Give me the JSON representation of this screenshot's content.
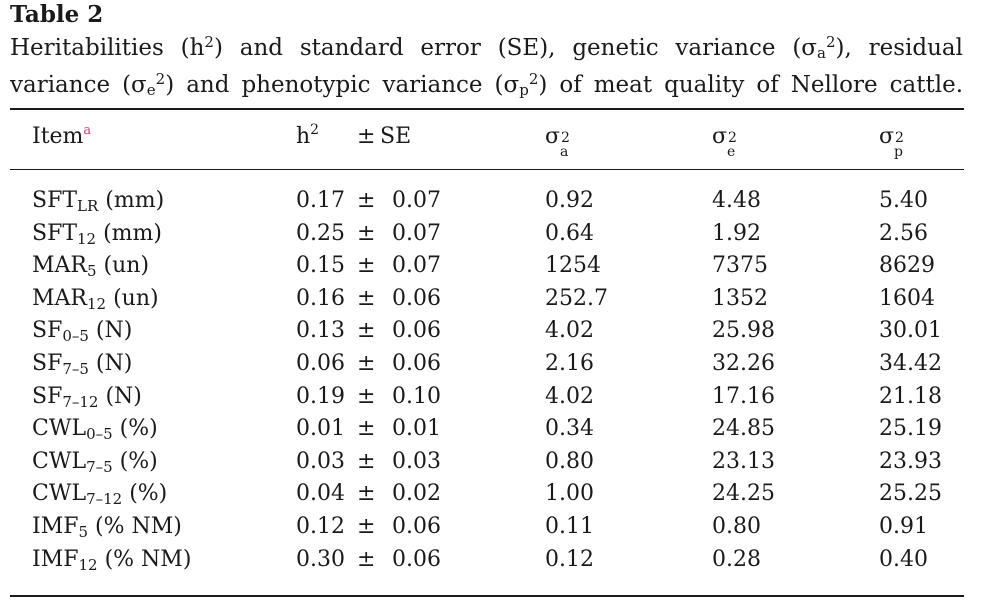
{
  "table": {
    "label": "Table 2",
    "caption_line1": {
      "p1": "Heritabilities (h",
      "sup1": "2",
      "p2": ") and standard error (SE), genetic variance (σ",
      "sub_a": "a",
      "sup_a": "2",
      "p3": "), residual"
    },
    "caption_line2": {
      "p1": "variance (σ",
      "sub_e": "e",
      "sup_e": "2",
      "p2": ") and phenotypic variance (σ",
      "sub_p": "p",
      "sup_p": "2",
      "p3": ") of meat quality of Nellore cattle."
    },
    "headers": {
      "item": "Item",
      "item_footnote": "a",
      "h2": "h",
      "h2_sup": "2",
      "pm": "±",
      "se": "SE",
      "sigma": "σ",
      "sub_a": "a",
      "sub_e": "e",
      "sub_p": "p",
      "sq": "2"
    },
    "rows": [
      {
        "item": "SFT",
        "sub": "LR",
        "unit": " (mm)",
        "h2": "0.17",
        "pm": "±",
        "se": "0.07",
        "sa2": "0.92",
        "se2": "4.48",
        "sp2": "5.40"
      },
      {
        "item": "SFT",
        "sub": "12",
        "unit": " (mm)",
        "h2": "0.25",
        "pm": "±",
        "se": "0.07",
        "sa2": "0.64",
        "se2": "1.92",
        "sp2": "2.56"
      },
      {
        "item": "MAR",
        "sub": "5",
        "unit": " (un)",
        "h2": "0.15",
        "pm": "±",
        "se": "0.07",
        "sa2": "1254",
        "se2": "7375",
        "sp2": "8629"
      },
      {
        "item": "MAR",
        "sub": "12",
        "unit": " (un)",
        "h2": "0.16",
        "pm": "±",
        "se": "0.06",
        "sa2": "252.7",
        "se2": "1352",
        "sp2": "1604"
      },
      {
        "item": "SF",
        "sub": "0–5",
        "unit": " (N)",
        "h2": "0.13",
        "pm": "±",
        "se": "0.06",
        "sa2": "4.02",
        "se2": "25.98",
        "sp2": "30.01"
      },
      {
        "item": "SF",
        "sub": "7–5",
        "unit": " (N)",
        "h2": "0.06",
        "pm": "±",
        "se": "0.06",
        "sa2": "2.16",
        "se2": "32.26",
        "sp2": "34.42"
      },
      {
        "item": "SF",
        "sub": "7–12",
        "unit": " (N)",
        "h2": "0.19",
        "pm": "±",
        "se": "0.10",
        "sa2": "4.02",
        "se2": "17.16",
        "sp2": "21.18"
      },
      {
        "item": "CWL",
        "sub": "0–5",
        "unit": " (%)",
        "h2": "0.01",
        "pm": "±",
        "se": "0.01",
        "sa2": "0.34",
        "se2": "24.85",
        "sp2": "25.19"
      },
      {
        "item": "CWL",
        "sub": "7–5",
        "unit": " (%)",
        "h2": "0.03",
        "pm": "±",
        "se": "0.03",
        "sa2": "0.80",
        "se2": "23.13",
        "sp2": "23.93"
      },
      {
        "item": "CWL",
        "sub": "7–12",
        "unit": " (%)",
        "h2": "0.04",
        "pm": "±",
        "se": "0.02",
        "sa2": "1.00",
        "se2": "24.25",
        "sp2": "25.25"
      },
      {
        "item": "IMF",
        "sub": "5",
        "unit": " (% NM)",
        "h2": "0.12",
        "pm": "±",
        "se": "0.06",
        "sa2": "0.11",
        "se2": "0.80",
        "sp2": "0.91"
      },
      {
        "item": "IMF",
        "sub": "12",
        "unit": " (% NM)",
        "h2": "0.30",
        "pm": "±",
        "se": "0.06",
        "sa2": "0.12",
        "se2": "0.28",
        "sp2": "0.40"
      }
    ]
  }
}
